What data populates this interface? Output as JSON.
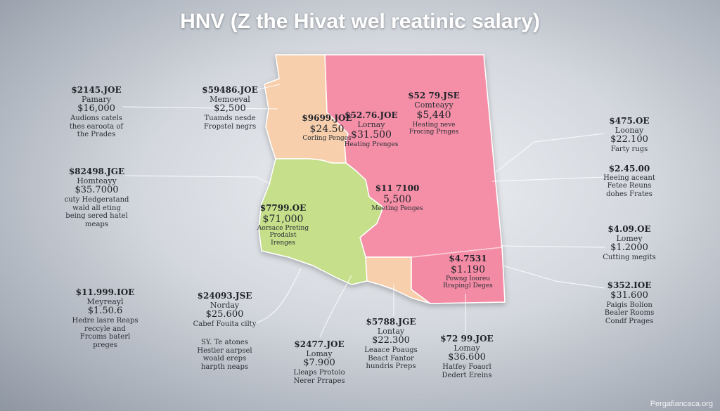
{
  "title": "HNV (Z the Hivat wel reatinic salary)",
  "footer": "Pergafiancaca.org",
  "colors": {
    "pink": "#f48fa7",
    "peach": "#f7cfac",
    "green": "#c5df8a",
    "leader": "#ffffff"
  },
  "regions": [
    {
      "name": "north-west",
      "color": "peach",
      "label": {
        "heading": "$9699.JOE",
        "value": "$24.50",
        "note": "Corling Penges"
      }
    },
    {
      "name": "north-center",
      "color": "pink",
      "label": {
        "heading": "$52.76.JOE",
        "sub": "Lornay",
        "value": "$31.500",
        "note": "Heating Prenges"
      }
    },
    {
      "name": "north-east",
      "color": "pink",
      "label": {
        "heading": "$52 79.JSE",
        "sub": "Comteayy",
        "value": "$5,440",
        "note": "Heating neve Frocing Prnges"
      }
    },
    {
      "name": "center",
      "color": "pink",
      "label": {
        "heading": "$11 7100",
        "value": "5,500",
        "note": "Meeting Penges"
      }
    },
    {
      "name": "west",
      "color": "green",
      "label": {
        "heading": "$7799.OE",
        "value": "$71,000",
        "note": "Aorsace Preting Prodalst Irenges"
      }
    },
    {
      "name": "south-center",
      "color": "peach",
      "label": null
    },
    {
      "name": "south-east",
      "color": "pink",
      "label": {
        "heading": "$4.7531",
        "value": "$1.190",
        "note": "Powng Iooreu Rrapingl Deges"
      }
    }
  ],
  "callouts": [
    {
      "name": "callout-far-nw",
      "heading": "$2145.JOE",
      "sub": "Pamary",
      "value": "$16,000",
      "desc": "Audions catels thes earoota of the Prades"
    },
    {
      "name": "callout-top",
      "heading": "$59486.JOE",
      "sub": "Memoeval",
      "value": "$2,500",
      "desc": "Tuamds nesde Fropstel negrs"
    },
    {
      "name": "callout-w",
      "heading": "$82498.JGE",
      "sub": "Homteayy",
      "value": "$35.7000",
      "desc": "cuty Hedgeratand wald all eting being sered hatel meaps"
    },
    {
      "name": "callout-sw",
      "heading": "$11.999.IOE",
      "sub": "Meyreayl",
      "value": "$1.50.6",
      "desc": "Hedre lasre Reaps reccyle and Frcoms baterl preges"
    },
    {
      "name": "callout-s1",
      "heading": "$24093.JSE",
      "sub": "Norday",
      "value": "$25.600",
      "desc": "Cabef Fouita cilty"
    },
    {
      "name": "callout-s1b",
      "heading": "",
      "sub": "",
      "value": "",
      "desc": "SY. Te atones Hestier aarpsel woald ereps harpth neaps"
    },
    {
      "name": "callout-s2",
      "heading": "$2477.JOE",
      "sub": "Lomay",
      "value": "$7.900",
      "desc": "Lleaps Protoio Nerer Prrapes"
    },
    {
      "name": "callout-s3",
      "heading": "$5788.JGE",
      "sub": "Lontay",
      "value": "$22.300",
      "desc": "Leaace Poaugs Beact Fantor hundris Preps"
    },
    {
      "name": "callout-s4",
      "heading": "$72 99.JOE",
      "sub": "Lomay",
      "value": "$36.600",
      "desc": "Hatfey Foaorl Dedert Ereins"
    },
    {
      "name": "callout-e1",
      "heading": "$475.OE",
      "sub": "Loonay",
      "value": "$22.100",
      "desc": "Farty rugs"
    },
    {
      "name": "callout-e2",
      "heading": "$2.45.00",
      "sub": "",
      "value": "",
      "desc": "Heeing aceant Fetee Reuns dohes Frates"
    },
    {
      "name": "callout-e3",
      "heading": "$4.09.OE",
      "sub": "Lomey",
      "value": "$1.2000",
      "desc": "Cutting megits"
    },
    {
      "name": "callout-e4",
      "heading": "$352.IOE",
      "sub": "",
      "value": "$31.600",
      "desc": "Paigis Bolion Bealer Rooms Condf Prages"
    }
  ]
}
